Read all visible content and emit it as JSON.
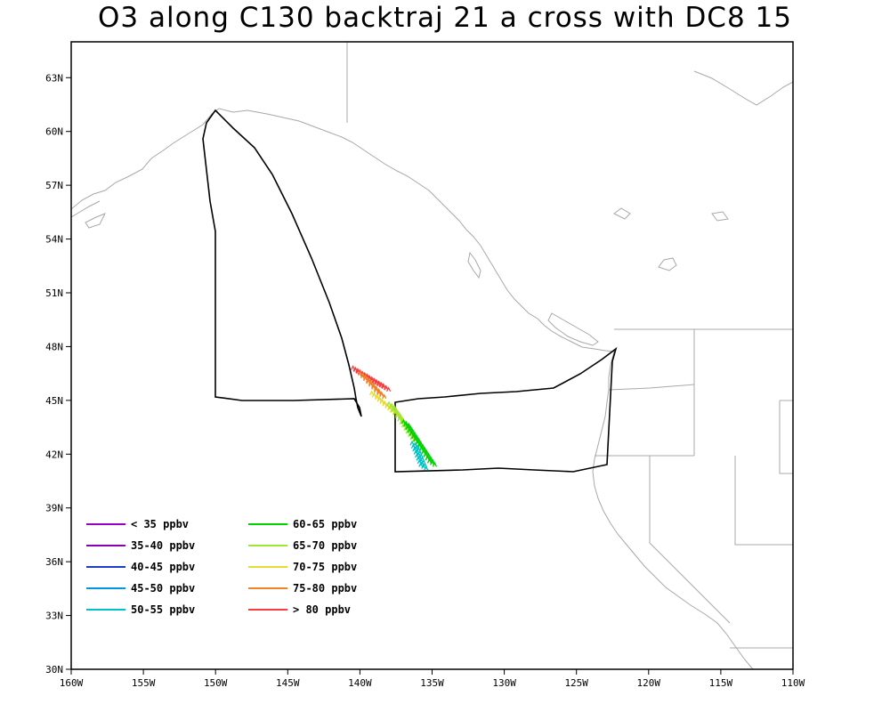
{
  "title": "O3 along C130 backtraj 21 a cross with DC8 15",
  "map": {
    "lon_range": [
      -160,
      -110
    ],
    "lat_range": [
      30,
      65
    ],
    "lon_ticks": [
      {
        "value": -160,
        "label": "160W"
      },
      {
        "value": -155,
        "label": "155W"
      },
      {
        "value": -150,
        "label": "150W"
      },
      {
        "value": -145,
        "label": "145W"
      },
      {
        "value": -140,
        "label": "140W"
      },
      {
        "value": -135,
        "label": "135W"
      },
      {
        "value": -130,
        "label": "130W"
      },
      {
        "value": -125,
        "label": "125W"
      },
      {
        "value": -120,
        "label": "120W"
      },
      {
        "value": -115,
        "label": "115W"
      },
      {
        "value": -110,
        "label": "110W"
      }
    ],
    "lat_ticks": [
      {
        "value": 30,
        "label": "30N"
      },
      {
        "value": 33,
        "label": "33N"
      },
      {
        "value": 36,
        "label": "36N"
      },
      {
        "value": 39,
        "label": "39N"
      },
      {
        "value": 42,
        "label": "42N"
      },
      {
        "value": 45,
        "label": "45N"
      },
      {
        "value": 48,
        "label": "48N"
      },
      {
        "value": 51,
        "label": "51N"
      },
      {
        "value": 54,
        "label": "54N"
      },
      {
        "value": 57,
        "label": "57N"
      },
      {
        "value": 60,
        "label": "60N"
      },
      {
        "value": 63,
        "label": "63N"
      }
    ],
    "coastline_color": "#a8a8a8",
    "flight_track_color": "#000000"
  },
  "legend": {
    "columns": [
      [
        {
          "label": "< 35 ppbv",
          "color": "#9a00c8"
        },
        {
          "label": "35-40 ppbv",
          "color": "#8a00b4"
        },
        {
          "label": "40-45 ppbv",
          "color": "#1e3cc8"
        },
        {
          "label": "45-50 ppbv",
          "color": "#0096e6"
        },
        {
          "label": "50-55 ppbv",
          "color": "#00c0c8"
        }
      ],
      [
        {
          "label": "60-65 ppbv",
          "color": "#00d200"
        },
        {
          "label": "65-70 ppbv",
          "color": "#a0e632"
        },
        {
          "label": "70-75 ppbv",
          "color": "#e6dc32"
        },
        {
          "label": "75-80 ppbv",
          "color": "#f08228"
        },
        {
          "label": "> 80 ppbv",
          "color": "#fa3c3c"
        }
      ]
    ]
  }
}
